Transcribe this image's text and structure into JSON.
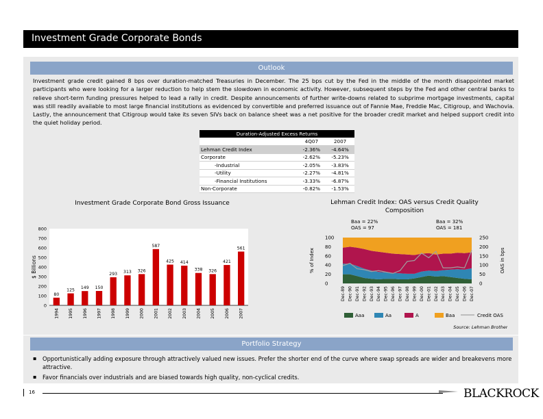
{
  "title": "Investment Grade Corporate Bonds",
  "outlook": {
    "heading": "Outlook",
    "text": "Investment grade credit gained 8 bps over duration-matched Treasuries in December.  The 25 bps cut by the Fed in the middle of the month disappointed market participants who were looking for a larger reduction to help stem the slowdown in economic activity.  However, subsequent steps by the Fed and other central banks to relieve short-term funding pressures helped to lead a rally in credit.  Despite announcements of further write-downs related to subprime mortgage investments, capital was still readily available to most large financial institutions as evidenced by convertible and preferred issuance out of Fannie Mae, Freddie Mac, Citigroup, and Wachovia.  Lastly, the announcement that Citigroup would take its seven SIVs back on balance sheet was a net positive for the broader credit market and helped support credit into the quiet holiday period."
  },
  "returns_table": {
    "title": "Duration-Adjusted Excess Returns",
    "columns": [
      "4Q07",
      "2007"
    ],
    "rows": [
      {
        "label": "Lehman Credit Index",
        "q": "-2.36%",
        "y": "-4.64%",
        "indent": false
      },
      {
        "label": "Corporate",
        "q": "-2.62%",
        "y": "-5.23%",
        "indent": false
      },
      {
        "label": "-Industrial",
        "q": "-2.05%",
        "y": "-3.83%",
        "indent": true
      },
      {
        "label": "-Utility",
        "q": "-2.27%",
        "y": "-4.81%",
        "indent": true
      },
      {
        "label": "-Financial Institutions",
        "q": "-3.33%",
        "y": "-6.87%",
        "indent": true
      },
      {
        "label": "Non-Corporate",
        "q": "-0.82%",
        "y": "-1.53%",
        "indent": false
      }
    ]
  },
  "charts": {
    "issuance_title": "Investment Grade Corporate Bond Gross Issuance",
    "composition_title": "Lehman Credit Index: OAS versus Credit Quality Composition",
    "baa_1989": "Baa = 22%",
    "oas_1989": "OAS = 97",
    "baa_2007": "Baa = 32%",
    "oas_2007": "OAS = 181",
    "source": "Source: Lehman Brothers"
  },
  "chart_data": [
    {
      "type": "bar",
      "title": "Investment Grade Corporate Bond Gross Issuance",
      "ylabel": "$ Billions",
      "ylim": [
        0,
        800
      ],
      "yticks": [
        0,
        100,
        200,
        300,
        400,
        500,
        600,
        700,
        800
      ],
      "categories": [
        "1994",
        "1995",
        "1996",
        "1997",
        "1998",
        "1999",
        "2000",
        "2001",
        "2002",
        "2003",
        "2004",
        "2005",
        "2006",
        "2007"
      ],
      "values": [
        80,
        125,
        149,
        150,
        293,
        313,
        326,
        587,
        425,
        414,
        338,
        326,
        421,
        561
      ],
      "value_labels": [
        "80",
        "125",
        "149",
        "150",
        "293",
        "313",
        "326",
        "587",
        "425",
        "414",
        "338",
        "326",
        "421",
        "561"
      ],
      "color": "#cc0000"
    },
    {
      "type": "area",
      "title": "Lehman Credit Index: OAS versus Credit Quality Composition",
      "ylabel": "% of Index",
      "ylim": [
        0,
        100
      ],
      "yticks": [
        0,
        20,
        40,
        60,
        80,
        100
      ],
      "y2label": "OAS in bps",
      "y2lim": [
        0,
        250
      ],
      "y2ticks": [
        0,
        50,
        100,
        150,
        200,
        250
      ],
      "x": [
        "Dec-89",
        "Dec-90",
        "Dec-91",
        "Dec-92",
        "Dec-93",
        "Dec-94",
        "Dec-95",
        "Dec-96",
        "Dec-97",
        "Dec-98",
        "Dec-99",
        "Dec-00",
        "Dec-01",
        "Dec-02",
        "Dec-03",
        "Dec-04",
        "Dec-05",
        "Dec-06",
        "Dec-07"
      ],
      "series": [
        {
          "name": "Aaa",
          "color": "#2f5f36",
          "values": [
            20,
            20,
            16,
            12,
            10,
            9,
            10,
            10,
            9,
            9,
            11,
            14,
            17,
            15,
            16,
            14,
            12,
            10,
            9
          ]
        },
        {
          "name": "Aa",
          "color": "#2f86b4",
          "values": [
            23,
            23,
            22,
            20,
            18,
            16,
            14,
            13,
            13,
            12,
            10,
            12,
            11,
            12,
            13,
            16,
            19,
            20,
            24
          ]
        },
        {
          "name": "A",
          "color": "#b0154d",
          "values": [
            35,
            37,
            40,
            43,
            43,
            44,
            43,
            42,
            42,
            42,
            41,
            39,
            38,
            36,
            36,
            35,
            36,
            36,
            35
          ]
        },
        {
          "name": "Baa",
          "color": "#f0a020",
          "values": [
            22,
            20,
            22,
            25,
            29,
            31,
            33,
            35,
            36,
            37,
            38,
            35,
            34,
            37,
            35,
            35,
            33,
            34,
            32
          ]
        }
      ],
      "line_series": {
        "name": "Credit OAS",
        "color": "#a0a0a0",
        "values": [
          97,
          110,
          80,
          75,
          65,
          70,
          62,
          55,
          70,
          120,
          125,
          165,
          140,
          175,
          85,
          85,
          90,
          85,
          181
        ]
      }
    }
  ],
  "strategy": {
    "heading": "Portfolio Strategy",
    "bullets": [
      "Opportunistically adding exposure through attractively valued new issues.  Prefer the shorter end of the curve where swap spreads are wider and breakevens more attractive.",
      "Favor financials over industrials and are biased towards high quality, non-cyclical credits."
    ]
  },
  "footer": {
    "page_number": "16",
    "logo": "BLACKROCK"
  }
}
